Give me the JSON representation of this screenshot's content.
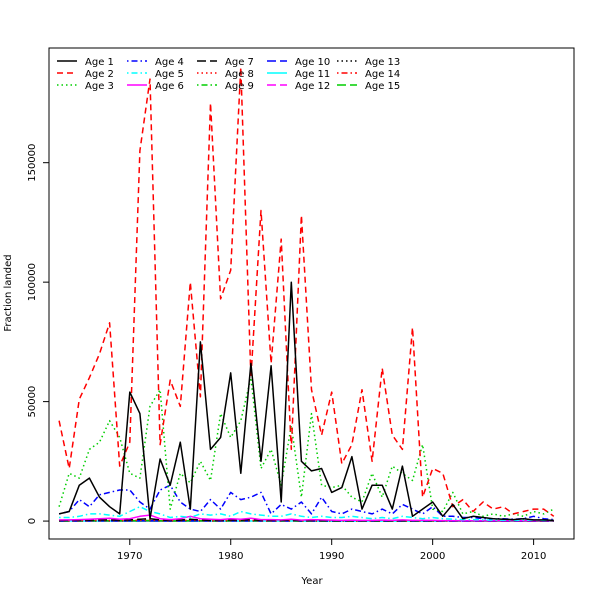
{
  "chart_data": {
    "type": "line",
    "xlabel": "Year",
    "ylabel": "Fraction landed",
    "xlim": [
      1962,
      2014
    ],
    "ylim": [
      -7500,
      198000
    ],
    "x_ticks": [
      1970,
      1980,
      1990,
      2000,
      2010
    ],
    "y_ticks": [
      0,
      50000,
      100000,
      150000
    ],
    "grid": false,
    "legend_position": "top-left",
    "x": [
      1963,
      1964,
      1965,
      1966,
      1967,
      1968,
      1969,
      1970,
      1971,
      1972,
      1973,
      1974,
      1975,
      1976,
      1977,
      1978,
      1979,
      1980,
      1981,
      1982,
      1983,
      1984,
      1985,
      1986,
      1987,
      1988,
      1989,
      1990,
      1991,
      1992,
      1993,
      1994,
      1995,
      1996,
      1997,
      1998,
      1999,
      2000,
      2001,
      2002,
      2003,
      2004,
      2005,
      2006,
      2007,
      2008,
      2009,
      2010,
      2011,
      2012
    ],
    "series": [
      {
        "name": "Age 1",
        "color": "#000000",
        "dash": "solid",
        "values": [
          3000,
          4000,
          15000,
          18000,
          10000,
          6000,
          3000,
          54000,
          45000,
          1000,
          26000,
          15000,
          33000,
          5000,
          75000,
          30000,
          35000,
          62000,
          20000,
          66000,
          25000,
          65000,
          8000,
          100000,
          25000,
          21000,
          22000,
          12000,
          14000,
          27000,
          5000,
          15000,
          15000,
          5000,
          23000,
          2000,
          5000,
          8000,
          2000,
          7000,
          1000,
          2000,
          1500,
          1000,
          800,
          600,
          1000,
          500,
          500,
          300
        ]
      },
      {
        "name": "Age 2",
        "color": "#ff0000",
        "dash": "dashed",
        "values": [
          42000,
          22000,
          51000,
          60000,
          70000,
          83000,
          23000,
          33000,
          155000,
          185000,
          32000,
          59000,
          48000,
          100000,
          52000,
          175000,
          93000,
          105000,
          190000,
          60000,
          130000,
          66000,
          118000,
          30000,
          128000,
          55000,
          36000,
          54000,
          24000,
          32000,
          55000,
          25000,
          64000,
          36000,
          30000,
          81000,
          10000,
          22000,
          20000,
          6000,
          9000,
          4000,
          8000,
          5000,
          6000,
          3000,
          4000,
          5000,
          5000,
          2000
        ]
      },
      {
        "name": "Age 3",
        "color": "#00cd00",
        "dash": "dotted",
        "values": [
          6000,
          20000,
          18000,
          30000,
          33000,
          42000,
          35000,
          20000,
          18000,
          48000,
          55000,
          5000,
          20000,
          16000,
          25000,
          17000,
          45000,
          35000,
          42000,
          60000,
          22000,
          30000,
          15000,
          40000,
          10000,
          45000,
          15000,
          14000,
          15000,
          10000,
          8000,
          20000,
          10000,
          23000,
          20000,
          17000,
          32000,
          5000,
          4000,
          12000,
          3000,
          4000,
          2000,
          3000,
          2000,
          3000,
          2000,
          4000,
          3000,
          5000
        ]
      },
      {
        "name": "Age 4",
        "color": "#0000ff",
        "dash": "dashdot",
        "values": [
          3000,
          4000,
          9000,
          6000,
          11000,
          12000,
          13000,
          13000,
          8000,
          5000,
          13000,
          15000,
          8000,
          5000,
          4000,
          9000,
          5000,
          12000,
          9000,
          10000,
          12000,
          3000,
          7000,
          5000,
          8000,
          3000,
          10000,
          4000,
          3000,
          5000,
          4000,
          3000,
          5000,
          3000,
          7000,
          5000,
          3000,
          6000,
          2000,
          2000,
          1500,
          1500,
          1000,
          1000,
          1000,
          800,
          1000,
          2000,
          1000,
          600
        ]
      },
      {
        "name": "Age 5",
        "color": "#00ffff",
        "dash": "dashdot",
        "values": [
          1500,
          1500,
          2000,
          3000,
          3000,
          2500,
          2000,
          4000,
          6000,
          4000,
          3000,
          1500,
          2000,
          1500,
          3000,
          2500,
          3000,
          2000,
          4000,
          3000,
          2500,
          2000,
          2000,
          3000,
          2000,
          1500,
          2000,
          1500,
          1500,
          2000,
          1500,
          1000,
          1500,
          1000,
          2000,
          1500,
          1000,
          1500,
          1000,
          800,
          600,
          600,
          500,
          400,
          400,
          300,
          400,
          400,
          300,
          200
        ]
      },
      {
        "name": "Age 6",
        "color": "#ff00ff",
        "dash": "solid",
        "values": [
          500,
          500,
          600,
          800,
          1000,
          1200,
          800,
          1000,
          2000,
          2500,
          1000,
          600,
          1000,
          2000,
          1000,
          800,
          600,
          1000,
          800,
          1200,
          600,
          600,
          500,
          800,
          400,
          600,
          500,
          400,
          300,
          400,
          300,
          300,
          400,
          300,
          500,
          300,
          300,
          300,
          200,
          200,
          150,
          150,
          100,
          100,
          100,
          100,
          100,
          100,
          100,
          100
        ]
      },
      {
        "name": "Age 7",
        "color": "#000000",
        "dash": "longdash",
        "values": [
          200,
          300,
          300,
          400,
          500,
          500,
          400,
          500,
          800,
          1000,
          500,
          300,
          400,
          800,
          500,
          300,
          300,
          500,
          400,
          600,
          300,
          300,
          300,
          400,
          200,
          300,
          200,
          200,
          150,
          200,
          150,
          150,
          200,
          150,
          250,
          150,
          150,
          150,
          100,
          100,
          100,
          80,
          80,
          60,
          60,
          60,
          60,
          60,
          50,
          50
        ]
      },
      {
        "name": "Age 8",
        "color": "#ff0000",
        "dash": "dotted",
        "values": [
          100,
          150,
          150,
          200,
          250,
          250,
          200,
          250,
          400,
          500,
          250,
          150,
          200,
          400,
          250,
          150,
          150,
          250,
          200,
          300,
          150,
          150,
          150,
          200,
          100,
          150,
          100,
          100,
          80,
          100,
          80,
          80,
          100,
          80,
          120,
          80,
          80,
          80,
          50,
          50,
          50,
          40,
          40,
          30,
          30,
          30,
          30,
          30,
          25,
          25
        ]
      },
      {
        "name": "Age 9",
        "color": "#00cd00",
        "dash": "dotdash",
        "values": [
          50,
          70,
          80,
          100,
          120,
          120,
          100,
          120,
          200,
          250,
          120,
          80,
          100,
          200,
          120,
          80,
          80,
          120,
          100,
          150,
          80,
          80,
          80,
          100,
          50,
          80,
          50,
          50,
          40,
          50,
          40,
          40,
          50,
          40,
          60,
          40,
          40,
          40,
          25,
          25,
          25,
          20,
          20,
          15,
          15,
          15,
          15,
          15,
          12,
          12
        ]
      },
      {
        "name": "Age 10",
        "color": "#0000ff",
        "dash": "longdash",
        "values": [
          25,
          35,
          40,
          50,
          60,
          60,
          50,
          60,
          100,
          120,
          60,
          40,
          50,
          100,
          60,
          40,
          40,
          60,
          50,
          75,
          40,
          40,
          40,
          50,
          25,
          40,
          25,
          25,
          20,
          25,
          20,
          20,
          25,
          20,
          30,
          20,
          20,
          20,
          12,
          12,
          12,
          10,
          10,
          8,
          8,
          8,
          8,
          8,
          6,
          6
        ]
      },
      {
        "name": "Age 11",
        "color": "#00ffff",
        "dash": "solid",
        "values": [
          12,
          18,
          20,
          25,
          30,
          30,
          25,
          30,
          50,
          60,
          30,
          20,
          25,
          50,
          30,
          20,
          20,
          30,
          25,
          40,
          20,
          20,
          20,
          25,
          12,
          20,
          12,
          12,
          10,
          12,
          10,
          10,
          12,
          10,
          15,
          10,
          10,
          10,
          6,
          6,
          6,
          5,
          5,
          4,
          4,
          4,
          4,
          4,
          3,
          3
        ]
      },
      {
        "name": "Age 12",
        "color": "#ff00ff",
        "dash": "longdash",
        "values": [
          6,
          9,
          10,
          12,
          15,
          15,
          12,
          15,
          25,
          30,
          15,
          10,
          12,
          25,
          15,
          10,
          10,
          15,
          12,
          20,
          10,
          10,
          10,
          12,
          6,
          10,
          6,
          6,
          5,
          6,
          5,
          5,
          6,
          5,
          8,
          5,
          5,
          5,
          3,
          3,
          3,
          2,
          2,
          2,
          2,
          2,
          2,
          2,
          2,
          2
        ]
      },
      {
        "name": "Age 13",
        "color": "#000000",
        "dash": "dotted",
        "values": [
          3,
          4,
          5,
          6,
          8,
          8,
          6,
          8,
          12,
          15,
          8,
          5,
          6,
          12,
          8,
          5,
          5,
          8,
          6,
          10,
          5,
          5,
          5,
          6,
          3,
          5,
          3,
          3,
          2,
          3,
          2,
          2,
          3,
          2,
          4,
          2,
          2,
          2,
          2,
          2,
          2,
          1,
          1,
          1,
          1,
          1,
          1,
          1,
          1,
          1
        ]
      },
      {
        "name": "Age 14",
        "color": "#ff0000",
        "dash": "dotdash",
        "values": [
          2,
          2,
          2,
          3,
          4,
          4,
          3,
          4,
          6,
          8,
          4,
          2,
          3,
          6,
          4,
          2,
          2,
          4,
          3,
          5,
          2,
          2,
          2,
          3,
          2,
          2,
          2,
          2,
          1,
          2,
          1,
          1,
          2,
          1,
          2,
          1,
          1,
          1,
          1,
          1,
          1,
          1,
          1,
          1,
          1,
          1,
          1,
          1,
          1,
          1
        ]
      },
      {
        "name": "Age 15",
        "color": "#00cd00",
        "dash": "longdash",
        "values": [
          1,
          1,
          1,
          2,
          2,
          2,
          2,
          2,
          3,
          4,
          2,
          1,
          2,
          3,
          2,
          1,
          1,
          2,
          2,
          3,
          1,
          1,
          1,
          2,
          1,
          1,
          1,
          1,
          1,
          1,
          1,
          1,
          1,
          1,
          1,
          1,
          1,
          1,
          1,
          1,
          1,
          1,
          1,
          1,
          1,
          1,
          1,
          1,
          1,
          1
        ]
      }
    ]
  }
}
